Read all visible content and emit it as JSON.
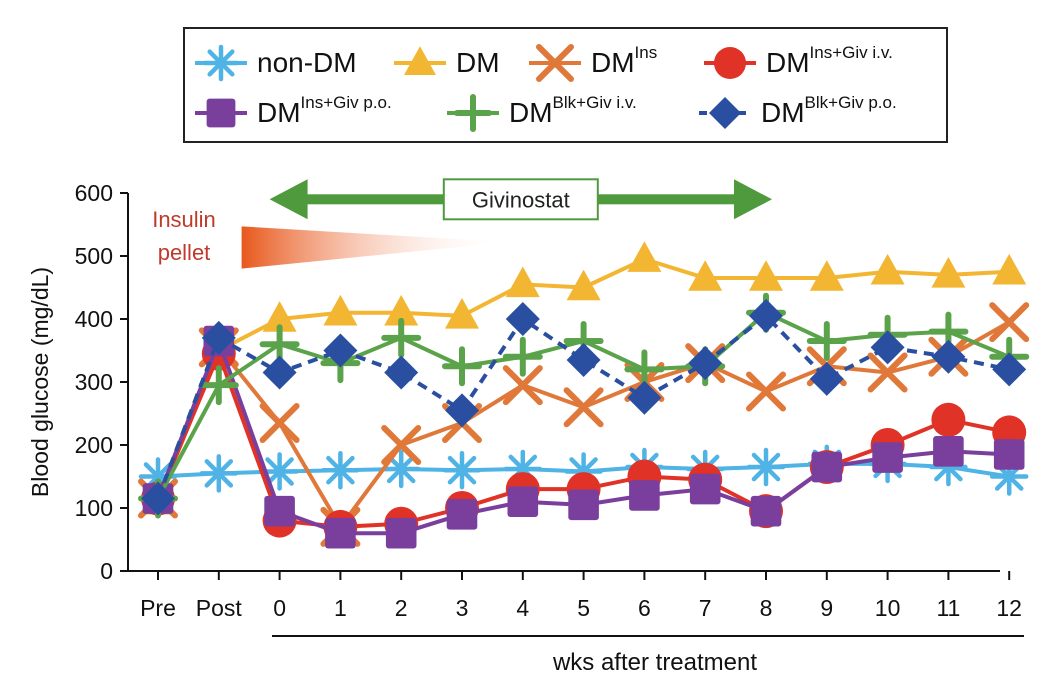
{
  "chart_data": {
    "type": "line",
    "xlabel": "wks after treatment",
    "ylabel": "Blood glucose (mg/dL)",
    "ylim": [
      0,
      600
    ],
    "yticks": [
      "0",
      "100",
      "200",
      "300",
      "400",
      "500",
      "600"
    ],
    "categories": [
      "Pre",
      "Post",
      "0",
      "1",
      "2",
      "3",
      "4",
      "5",
      "6",
      "7",
      "8",
      "9",
      "10",
      "11",
      "12"
    ],
    "treatment_bar": {
      "label": "Givinostat",
      "from": "0",
      "to": "8"
    },
    "insulin_pellet": {
      "label_line1": "Insulin",
      "label_line2": "pellet",
      "from": "0",
      "to": "4"
    },
    "series": [
      {
        "key": "nondm",
        "name": "non-DM",
        "sup": "",
        "color": "#4fb3e6",
        "marker": "asterisk",
        "dashed": false,
        "values": [
          150,
          155,
          158,
          160,
          162,
          160,
          162,
          158,
          165,
          162,
          165,
          170,
          170,
          165,
          150
        ]
      },
      {
        "key": "dm",
        "name": "DM",
        "sup": "",
        "color": "#f2b632",
        "marker": "triangle",
        "dashed": false,
        "values": [
          110,
          350,
          400,
          410,
          410,
          405,
          455,
          450,
          495,
          465,
          465,
          465,
          475,
          470,
          475
        ]
      },
      {
        "key": "dmins",
        "name": "DM",
        "sup": "Ins",
        "color": "#e0783a",
        "marker": "x",
        "dashed": false,
        "values": [
          115,
          355,
          235,
          70,
          200,
          235,
          295,
          260,
          300,
          330,
          285,
          325,
          315,
          340,
          395
        ]
      },
      {
        "key": "insgiviv",
        "name": "DM",
        "sup": "Ins+Giv i.v.",
        "color": "#e03226",
        "marker": "circle",
        "dashed": false,
        "values": [
          115,
          345,
          80,
          70,
          75,
          100,
          130,
          130,
          150,
          145,
          95,
          165,
          200,
          240,
          220
        ]
      },
      {
        "key": "insgivpo",
        "name": "DM",
        "sup": "Ins+Giv p.o.",
        "color": "#7a3f9d",
        "marker": "square",
        "dashed": false,
        "values": [
          115,
          365,
          95,
          60,
          60,
          90,
          110,
          105,
          120,
          130,
          95,
          165,
          180,
          190,
          185
        ]
      },
      {
        "key": "blkgiviv",
        "name": "DM",
        "sup": "Blk+Giv i.v.",
        "color": "#5aa34a",
        "marker": "plus",
        "dashed": false,
        "values": [
          115,
          295,
          360,
          330,
          370,
          325,
          340,
          365,
          320,
          325,
          410,
          365,
          375,
          380,
          340
        ]
      },
      {
        "key": "blkgivpo",
        "name": "DM",
        "sup": "Blk+Giv p.o.",
        "color": "#2b4fa0",
        "marker": "diamond",
        "dashed": true,
        "values": [
          115,
          370,
          315,
          350,
          315,
          255,
          400,
          335,
          275,
          330,
          405,
          305,
          355,
          340,
          320
        ]
      }
    ]
  }
}
